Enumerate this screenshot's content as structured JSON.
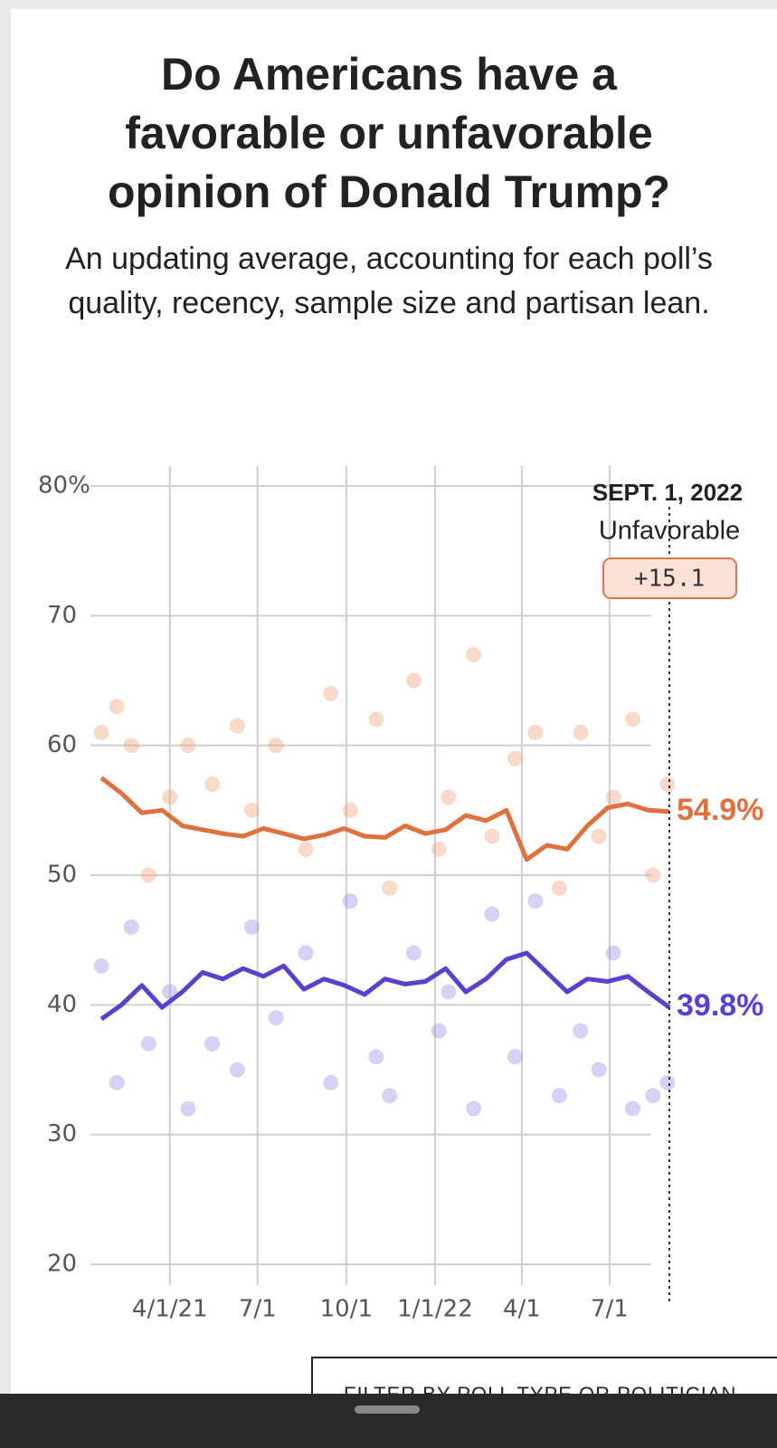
{
  "chart_data": {
    "type": "line",
    "title": "Do Americans have a favorable or unfavorable opinion of Donald Trump?",
    "subtitle": "An updating average, accounting for each poll’s quality, recency, sample size and partisan lean.",
    "x": [
      "2021-01-20",
      "2021-02-10",
      "2021-03-03",
      "2021-03-24",
      "2021-04-14",
      "2021-05-05",
      "2021-05-26",
      "2021-06-16",
      "2021-07-07",
      "2021-07-28",
      "2021-08-18",
      "2021-09-08",
      "2021-09-29",
      "2021-10-20",
      "2021-11-10",
      "2021-12-01",
      "2021-12-22",
      "2022-01-12",
      "2022-02-02",
      "2022-02-23",
      "2022-03-16",
      "2022-04-06",
      "2022-04-27",
      "2022-05-18",
      "2022-06-08",
      "2022-06-29",
      "2022-07-20",
      "2022-08-10",
      "2022-09-01"
    ],
    "series": [
      {
        "color": "#e0703e",
        "values": [
          57.5,
          56.3,
          54.8,
          55.0,
          53.8,
          53.5,
          53.2,
          53.0,
          53.6,
          53.2,
          52.8,
          53.1,
          53.6,
          53.0,
          52.9,
          53.8,
          53.2,
          53.5,
          54.6,
          54.2,
          55.0,
          51.2,
          52.3,
          52.0,
          53.8,
          55.2,
          55.5,
          55.0,
          54.9
        ],
        "value_labels": [
          null,
          null,
          null,
          null,
          null,
          null,
          null,
          null,
          null,
          null,
          null,
          null,
          null,
          null,
          null,
          null,
          null,
          null,
          null,
          null,
          null,
          null,
          null,
          null,
          null,
          null,
          null,
          null,
          "54.9%"
        ]
      },
      {
        "color": "#5a3fd1",
        "values": [
          38.9,
          40.0,
          41.5,
          39.8,
          41.0,
          42.5,
          42.0,
          42.8,
          42.2,
          43.0,
          41.2,
          42.0,
          41.5,
          40.8,
          42.0,
          41.6,
          41.8,
          42.8,
          41.0,
          42.0,
          43.5,
          44.0,
          42.5,
          41.0,
          42.0,
          41.8,
          42.2,
          41.0,
          39.8
        ],
        "value_labels": [
          null,
          null,
          null,
          null,
          null,
          null,
          null,
          null,
          null,
          null,
          null,
          null,
          null,
          null,
          null,
          null,
          null,
          null,
          null,
          null,
          null,
          null,
          null,
          null,
          null,
          null,
          null,
          null,
          "39.8%"
        ]
      }
    ],
    "polls": [
      {
        "color": "#f0a07a",
        "x": [
          "2021-01-20",
          "2021-02-05",
          "2021-02-20",
          "2021-03-10",
          "2021-04-01",
          "2021-04-20",
          "2021-05-15",
          "2021-06-10",
          "2021-06-25",
          "2021-07-20",
          "2021-08-20",
          "2021-09-15",
          "2021-10-05",
          "2021-11-01",
          "2021-11-15",
          "2021-12-10",
          "2022-01-05",
          "2022-01-15",
          "2022-02-10",
          "2022-03-01",
          "2022-03-25",
          "2022-04-15",
          "2022-05-10",
          "2022-06-01",
          "2022-06-20",
          "2022-07-05",
          "2022-07-25",
          "2022-08-15",
          "2022-08-30"
        ],
        "values": [
          61,
          63,
          60,
          50,
          56,
          60,
          57,
          61.5,
          55,
          60,
          52,
          64,
          55,
          62,
          49,
          65,
          52,
          56,
          67,
          53,
          59,
          61,
          49,
          61,
          53,
          56,
          62,
          50,
          57
        ]
      },
      {
        "color": "#9d8ce6",
        "x": [
          "2021-01-20",
          "2021-02-05",
          "2021-02-20",
          "2021-03-10",
          "2021-04-01",
          "2021-04-20",
          "2021-05-15",
          "2021-06-10",
          "2021-06-25",
          "2021-07-20",
          "2021-08-20",
          "2021-09-15",
          "2021-10-05",
          "2021-11-01",
          "2021-11-15",
          "2021-12-10",
          "2022-01-05",
          "2022-01-15",
          "2022-02-10",
          "2022-03-01",
          "2022-03-25",
          "2022-04-15",
          "2022-05-10",
          "2022-06-01",
          "2022-06-20",
          "2022-07-05",
          "2022-07-25",
          "2022-08-15",
          "2022-08-30"
        ],
        "values": [
          43,
          34,
          46,
          37,
          41,
          32,
          37,
          35,
          46,
          39,
          44,
          34,
          48,
          36,
          33,
          44,
          38,
          41,
          32,
          47,
          36,
          48,
          33,
          38,
          35,
          44,
          32,
          33,
          34
        ]
      }
    ],
    "xlim": [
      "2021-01-04",
      "2022-09-01"
    ],
    "xticks": [
      {
        "value": "2021-04-01",
        "label": "4/1/21"
      },
      {
        "value": "2021-07-01",
        "label": "7/1"
      },
      {
        "value": "2021-10-01",
        "label": "10/1"
      },
      {
        "value": "2022-01-01",
        "label": "1/1/22"
      },
      {
        "value": "2022-04-01",
        "label": "4/1"
      },
      {
        "value": "2022-07-01",
        "label": "7/1"
      }
    ],
    "ylim": [
      20,
      80
    ],
    "yticks": [
      20,
      30,
      40,
      50,
      60,
      70,
      {
        "value": 80,
        "label": "80%"
      }
    ],
    "grid": true,
    "annotation": {
      "x": "2022-09-01",
      "date": "SEPT. 1, 2022",
      "label": "Unfavorable",
      "margin": "+15.1"
    },
    "filter_button": "FILTER BY POLL TYPE OR POLITICIAN"
  }
}
